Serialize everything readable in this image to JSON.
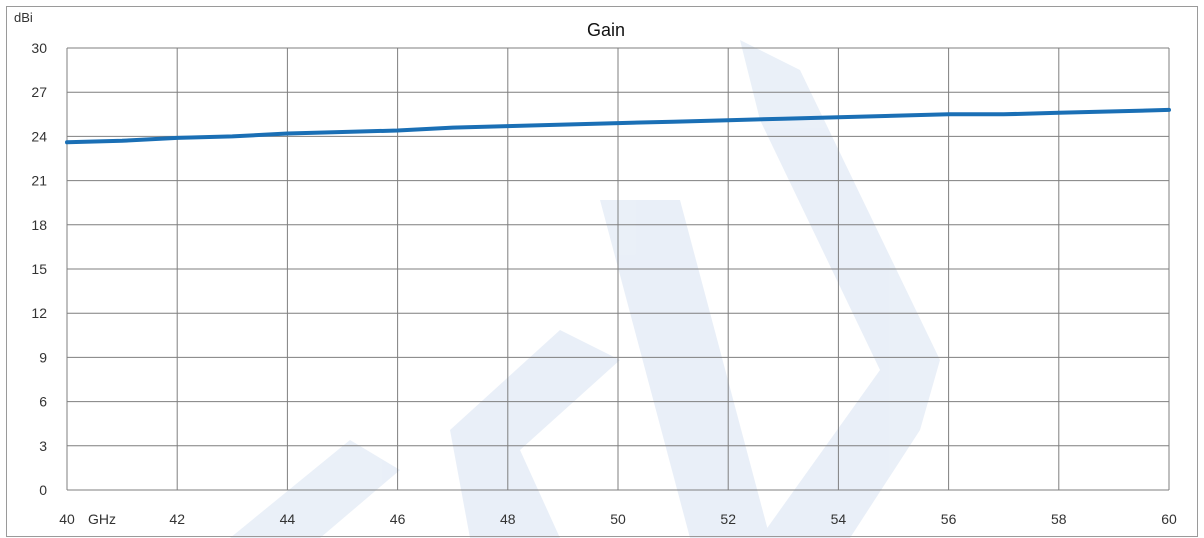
{
  "chart_data": {
    "type": "line",
    "title": "Gain",
    "ylabel": "dBi",
    "xlabel": "GHz",
    "xlim": [
      40,
      60
    ],
    "ylim": [
      0,
      30
    ],
    "x_ticks": [
      40,
      42,
      44,
      46,
      48,
      50,
      52,
      54,
      56,
      58,
      60
    ],
    "y_ticks": [
      0,
      3,
      6,
      9,
      12,
      15,
      18,
      21,
      24,
      27,
      30
    ],
    "x_tick_labels": [
      "40",
      "42",
      "44",
      "46",
      "48",
      "50",
      "52",
      "54",
      "56",
      "58",
      "60"
    ],
    "y_tick_labels": [
      "0",
      "3",
      "6",
      "9",
      "12",
      "15",
      "18",
      "21",
      "24",
      "27",
      "30"
    ],
    "grid": true,
    "legend": "none",
    "series": [
      {
        "color": "#1a6fb5",
        "x": [
          40,
          41,
          42,
          43,
          44,
          45,
          46,
          47,
          48,
          49,
          50,
          51,
          52,
          53,
          54,
          55,
          56,
          57,
          58,
          59,
          60
        ],
        "y": [
          23.6,
          23.7,
          23.9,
          24.0,
          24.2,
          24.3,
          24.4,
          24.6,
          24.7,
          24.8,
          24.9,
          25.0,
          25.1,
          25.2,
          25.3,
          25.4,
          25.5,
          25.5,
          25.6,
          25.7,
          25.8
        ]
      }
    ]
  }
}
